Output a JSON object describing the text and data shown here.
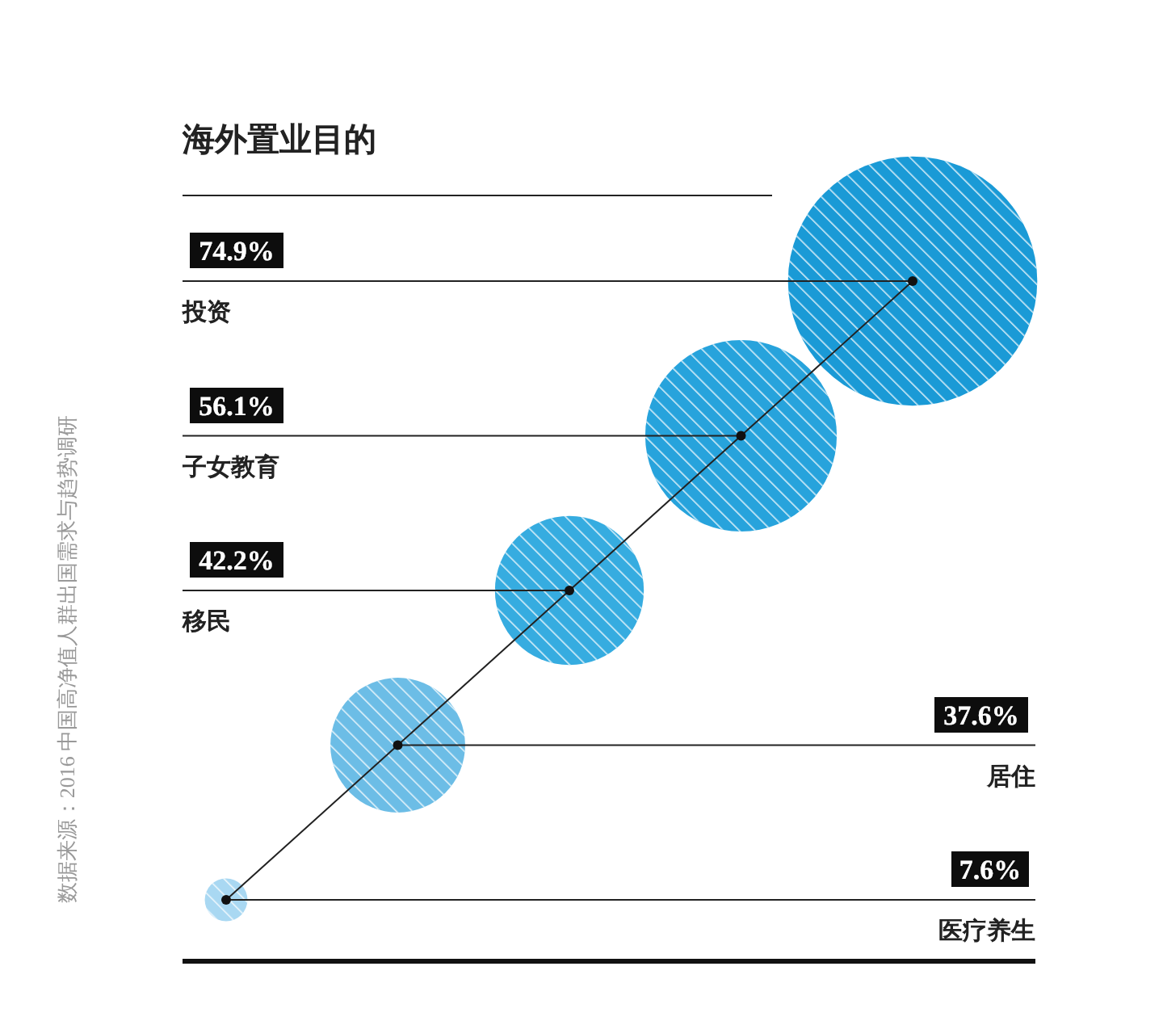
{
  "chart_data": {
    "type": "other",
    "title": "海外置业目的",
    "categories": [
      "投资",
      "子女教育",
      "移民",
      "居住",
      "医疗养生"
    ],
    "values": [
      74.9,
      56.1,
      42.2,
      37.6,
      7.6
    ],
    "value_labels": [
      "74.9%",
      "56.1%",
      "42.2%",
      "37.6%",
      "7.6%"
    ],
    "colors": [
      "#1a9ad6",
      "#27a3dc",
      "#36ace0",
      "#6cbde6",
      "#a9d8f2"
    ],
    "annotations": [
      "数据来源：2016 中国高净值人群出国需求与趋势调研"
    ]
  }
}
